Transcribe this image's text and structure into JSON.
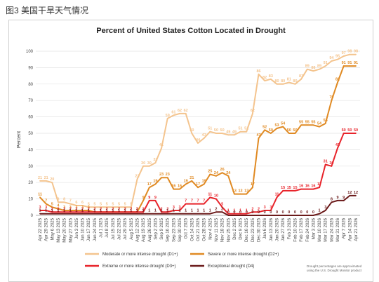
{
  "caption": "图3 美国干旱天气情况",
  "chart_data": {
    "type": "line",
    "title": "Percent of United States Cotton Located in Drought",
    "ylabel": "Percent",
    "ylim": [
      0,
      100
    ],
    "yticks": [
      0,
      10,
      20,
      30,
      40,
      50,
      60,
      70,
      80,
      90,
      100
    ],
    "grid": true,
    "legend_position": "bottom",
    "source_note": [
      "Drought percentages are approximated",
      "using the U.S. Drought Monitor product"
    ],
    "categories": [
      "Apr 22 2025",
      "Apr 29 2025",
      "May 6 2025",
      "May 13 2025",
      "May 20 2025",
      "May 27 2025",
      "Jun 3 2025",
      "Jun 10 2025",
      "Jun 17 2025",
      "Jun 24 2025",
      "Jul 1 2025",
      "Jul 8 2025",
      "Jul 15 2025",
      "Jul 22 2025",
      "Jul 29 2025",
      "Aug 5 2025",
      "Aug 12 2025",
      "Aug 19 2025",
      "Aug 26 2025",
      "Sep 2 2025",
      "Sep 9 2025",
      "Sep 16 2025",
      "Sep 23 2025",
      "Sep 30 2025",
      "Oct 7 2025",
      "Oct 14 2025",
      "Oct 21 2025",
      "Oct 28 2025",
      "Nov 4 2025",
      "Nov 11 2025",
      "Nov 18 2025",
      "Nov 25 2025",
      "Dec 2 2025",
      "Dec 9 2025",
      "Dec 16 2025",
      "Dec 23 2025",
      "Dec 30 2025",
      "Jan 6 2026",
      "Jan 13 2026",
      "Jan 20 2026",
      "Jan 27 2026",
      "Feb 3 2026",
      "Feb 10 2026",
      "Feb 17 2026",
      "Feb 24 2026",
      "Mar 3 2026",
      "Mar 10 2026",
      "Mar 17 2026",
      "Mar 24 2026",
      "Mar 31 2026",
      "Apr 7 2026",
      "Apr 14 2026",
      "Apr 21 2026"
    ],
    "visible_tick_labels": [
      "Apr 22 2025",
      "Apr 29 2025",
      "May 6 2025",
      "May 13 2025",
      "May 20 2025",
      "May 27 2025",
      "Jun 3 2025",
      "Jun 10 2025",
      "Jun 17 2025",
      "Jun 24 2025",
      "Jul 1 2025",
      "Jul 8 2025",
      "Jul 15 2025",
      "Jul 22 2025",
      "Jul 29 2025",
      "Aug 5 2025",
      "Aug 12 2025",
      "Aug 19 2025",
      "Aug 26 2025",
      "Sep 2 2025",
      "Sep 9 2025",
      "Sep 16 2025",
      "Sep 23 2025",
      "Sep 30 2025",
      "Oct 7 2025",
      "Oct 14 2025",
      "Oct 21 2025",
      "Oct 28 2025",
      "Nov 4 2025",
      "Nov 11 2025",
      "Nov 18 2025",
      "Nov 25 2025",
      "Dec 2 2025",
      "Dec 9 2025",
      "Dec 16 2025",
      "Dec 23 2025",
      "Dec 30 2025",
      "Jan 6 2026",
      "Jan 13 2026",
      "Jan 20 2026",
      "Jan 27 2026",
      "Feb 3 2026",
      "Feb 10 2026",
      "Feb 17 2026",
      "Feb 24 2026",
      "Mar 3 2026",
      "Mar 10 2026",
      "Mar 17 2026",
      "Mar 24 2026",
      "Mar 31 2026",
      "Apr 7 2026",
      "Apr 14 2026",
      "Apr 21 2026"
    ],
    "series": [
      {
        "name": "Moderate or more intense drought (D1+)",
        "color": "#f4c48e",
        "values": [
          21,
          21,
          20,
          8,
          8,
          7,
          6,
          6,
          5,
          5,
          5,
          5,
          5,
          5,
          5,
          5,
          22,
          30,
          30,
          32,
          41,
          59,
          61,
          62,
          62,
          50,
          44,
          47,
          51,
          50,
          50,
          49,
          49,
          51,
          51,
          62,
          86,
          82,
          83,
          80,
          80,
          81,
          80,
          83,
          89,
          88,
          89,
          91,
          94,
          95,
          97,
          98,
          98
        ],
        "labels": [
          21,
          21,
          20,
          8,
          8,
          7,
          6,
          6,
          5,
          5,
          5,
          5,
          5,
          5,
          5,
          5,
          22,
          30,
          30,
          32,
          41,
          59,
          61,
          62,
          62,
          50,
          44,
          47,
          51,
          50,
          50,
          49,
          49,
          51,
          51,
          62,
          86,
          82,
          83,
          80,
          80,
          81,
          80,
          83,
          89,
          88,
          89,
          91,
          94,
          95,
          97,
          98,
          98
        ]
      },
      {
        "name": "Severe or more intense drought (D2+)",
        "color": "#e08a23",
        "values": [
          11,
          7,
          5,
          4,
          3,
          3,
          3,
          3,
          3,
          2,
          2,
          2,
          2,
          2,
          2,
          2,
          2,
          9,
          17,
          19,
          23,
          23,
          16,
          16,
          19,
          21,
          17,
          19,
          25,
          24,
          26,
          24,
          13,
          13,
          13,
          17,
          47,
          52,
          50,
          53,
          54,
          50,
          50,
          55,
          55,
          55,
          54,
          56,
          70,
          81,
          91,
          91,
          91
        ],
        "labels": [
          11,
          7,
          5,
          4,
          3,
          3,
          3,
          3,
          3,
          2,
          2,
          2,
          2,
          2,
          2,
          2,
          2,
          9,
          17,
          19,
          23,
          23,
          16,
          16,
          19,
          21,
          17,
          19,
          25,
          24,
          26,
          24,
          13,
          13,
          13,
          17,
          47,
          52,
          50,
          53,
          54,
          50,
          50,
          55,
          55,
          55,
          54,
          56,
          70,
          81,
          91,
          91,
          91
        ]
      },
      {
        "name": "Extreme or more intense drought (D3+)",
        "color": "#e8242b",
        "values": [
          3,
          3,
          2,
          2,
          2,
          2,
          2,
          2,
          2,
          2,
          2,
          2,
          2,
          2,
          2,
          2,
          2,
          2,
          9,
          9,
          2,
          2,
          3,
          3,
          7,
          7,
          7,
          7,
          11,
          10,
          5,
          1,
          1,
          1,
          1,
          2,
          2,
          3,
          3,
          11,
          15,
          15,
          15,
          16,
          16,
          16,
          17,
          31,
          30,
          41,
          50,
          50,
          50
        ],
        "labels": [
          3,
          3,
          2,
          2,
          2,
          2,
          2,
          2,
          2,
          2,
          2,
          2,
          2,
          2,
          2,
          2,
          2,
          2,
          9,
          9,
          2,
          2,
          3,
          3,
          7,
          7,
          7,
          7,
          11,
          10,
          5,
          1,
          1,
          1,
          1,
          2,
          2,
          3,
          3,
          11,
          15,
          15,
          15,
          16,
          16,
          16,
          17,
          31,
          30,
          41,
          50,
          50,
          50
        ]
      },
      {
        "name": "Exceptional drought (D4)",
        "color": "#6b1a1a",
        "values": [
          1,
          1,
          1,
          1,
          1,
          1,
          1,
          1,
          1,
          1,
          1,
          1,
          1,
          1,
          1,
          1,
          1,
          1,
          1,
          1,
          1,
          1,
          1,
          1,
          1,
          1,
          1,
          1,
          1,
          2,
          2,
          0,
          0,
          0,
          0,
          0,
          0,
          0,
          0,
          0,
          0,
          0,
          0,
          0,
          0,
          0,
          1,
          3,
          8,
          9,
          9,
          12,
          12
        ],
        "labels": [
          1,
          1,
          1,
          1,
          1,
          1,
          1,
          1,
          1,
          1,
          1,
          1,
          1,
          1,
          1,
          1,
          1,
          1,
          1,
          1,
          1,
          1,
          1,
          1,
          1,
          1,
          1,
          1,
          1,
          2,
          2,
          0,
          0,
          0,
          0,
          0,
          0,
          0,
          0,
          0,
          0,
          0,
          0,
          0,
          0,
          0,
          1,
          3,
          8,
          9,
          9,
          12,
          12
        ]
      }
    ]
  }
}
